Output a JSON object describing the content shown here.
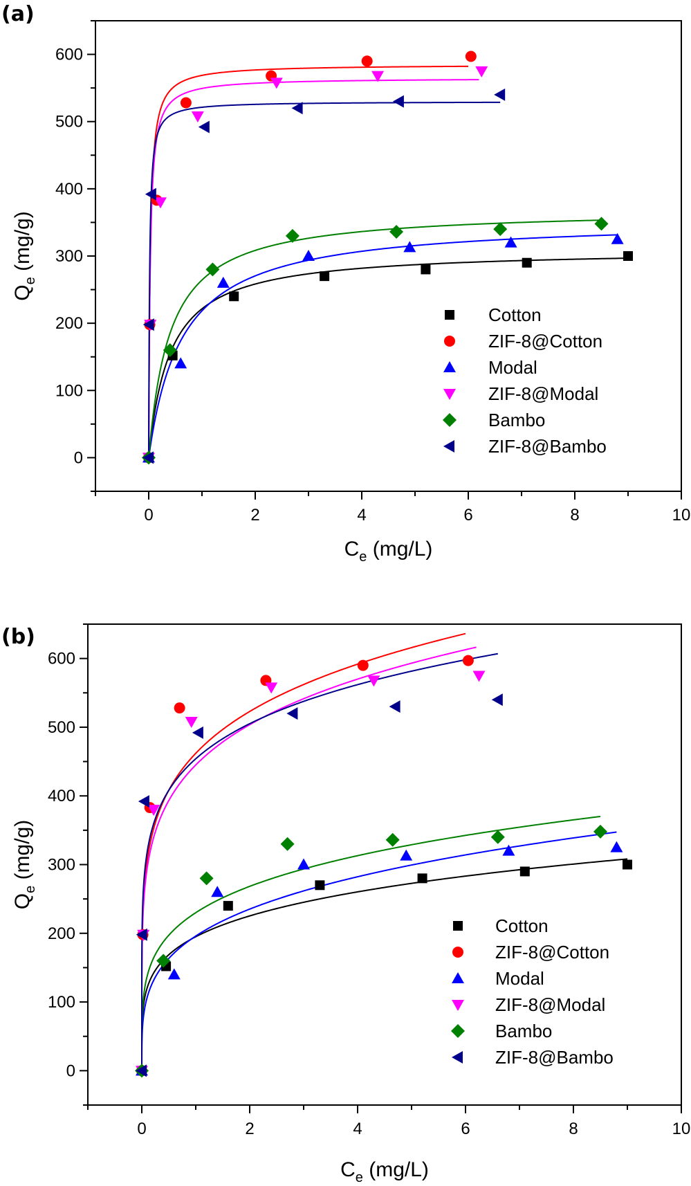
{
  "chart_data": [
    {
      "type": "scatter",
      "panel_label": "(a)",
      "fit_model": "Langmuir",
      "xlabel": "C",
      "xlabel_sub": "e",
      "xlabel_unit": " (mg/L)",
      "ylabel": "Q",
      "ylabel_sub": "e",
      "ylabel_unit": " (mg/g)",
      "xlim": [
        -1,
        10
      ],
      "ylim": [
        -50,
        650
      ],
      "xticks": [
        0,
        2,
        4,
        6,
        8,
        10
      ],
      "yticks": [
        0,
        100,
        200,
        300,
        400,
        500,
        600
      ],
      "legend_position": "bottom-right",
      "series": [
        {
          "name": "Cotton",
          "color": "#000000",
          "marker": "square",
          "x": [
            0,
            0.45,
            1.6,
            3.3,
            5.2,
            7.1,
            9.0
          ],
          "y": [
            0,
            152,
            240,
            270,
            280,
            290,
            300
          ],
          "fit": {
            "qmax": 310,
            "K": 2.5,
            "xmax": 9.0
          }
        },
        {
          "name": "ZIF-8@Cotton",
          "color": "#ff0000",
          "marker": "circle",
          "x": [
            0,
            0.02,
            0.15,
            0.7,
            2.3,
            4.1,
            6.05
          ],
          "y": [
            0,
            198,
            383,
            528,
            568,
            590,
            597
          ],
          "fit": {
            "qmax": 585,
            "K": 35,
            "xmax": 6.0
          }
        },
        {
          "name": "Modal",
          "color": "#0000ff",
          "marker": "triangle-up",
          "x": [
            0,
            0.6,
            1.4,
            3.0,
            4.9,
            6.8,
            8.8
          ],
          "y": [
            0,
            140,
            260,
            300,
            313,
            320,
            325
          ],
          "fit": {
            "qmax": 355,
            "K": 1.6,
            "xmax": 8.8
          }
        },
        {
          "name": "ZIF-8@Modal",
          "color": "#ff00ff",
          "marker": "triangle-down",
          "x": [
            0,
            0.03,
            0.22,
            0.92,
            2.4,
            4.3,
            6.25
          ],
          "y": [
            0,
            198,
            380,
            508,
            558,
            568,
            575
          ],
          "fit": {
            "qmax": 565,
            "K": 35,
            "xmax": 6.2
          }
        },
        {
          "name": "Bambo",
          "color": "#008000",
          "marker": "diamond",
          "x": [
            0,
            0.4,
            1.2,
            2.7,
            4.65,
            6.6,
            8.5
          ],
          "y": [
            0,
            160,
            280,
            330,
            336,
            340,
            348
          ],
          "fit": {
            "qmax": 370,
            "K": 2.5,
            "xmax": 8.5
          }
        },
        {
          "name": "ZIF-8@Bambo",
          "color": "#00008b",
          "marker": "triangle-left",
          "x": [
            0,
            0.01,
            0.05,
            1.05,
            2.8,
            4.7,
            6.6
          ],
          "y": [
            0,
            198,
            392,
            492,
            520,
            530,
            540
          ],
          "fit": {
            "qmax": 530,
            "K": 60,
            "xmax": 6.6
          }
        }
      ]
    },
    {
      "type": "scatter",
      "panel_label": "(b)",
      "fit_model": "Freundlich",
      "xlabel": "C",
      "xlabel_sub": "e",
      "xlabel_unit": " (mg/L)",
      "ylabel": "Q",
      "ylabel_sub": "e",
      "ylabel_unit": " (mg/g)",
      "xlim": [
        -1,
        10
      ],
      "ylim": [
        -50,
        650
      ],
      "xticks": [
        0,
        2,
        4,
        6,
        8,
        10
      ],
      "yticks": [
        0,
        100,
        200,
        300,
        400,
        500,
        600
      ],
      "legend_position": "bottom-right",
      "series": [
        {
          "name": "Cotton",
          "color": "#000000",
          "marker": "square",
          "x": [
            0,
            0.45,
            1.6,
            3.3,
            5.2,
            7.1,
            9.0
          ],
          "y": [
            0,
            152,
            240,
            270,
            280,
            290,
            300
          ],
          "fit": {
            "KF": 195,
            "n": 4.8,
            "xmax": 9.0
          }
        },
        {
          "name": "ZIF-8@Cotton",
          "color": "#ff0000",
          "marker": "circle",
          "x": [
            0,
            0.02,
            0.15,
            0.7,
            2.3,
            4.1,
            6.05
          ],
          "y": [
            0,
            198,
            383,
            528,
            568,
            590,
            597
          ],
          "fit": {
            "KF": 462,
            "n": 5.6,
            "xmax": 6.0
          }
        },
        {
          "name": "Modal",
          "color": "#0000ff",
          "marker": "triangle-up",
          "x": [
            0,
            0.6,
            1.4,
            3.0,
            4.9,
            6.8,
            8.8
          ],
          "y": [
            0,
            140,
            260,
            300,
            313,
            320,
            325
          ],
          "fit": {
            "KF": 196,
            "n": 3.8,
            "xmax": 8.8
          }
        },
        {
          "name": "ZIF-8@Modal",
          "color": "#ff00ff",
          "marker": "triangle-down",
          "x": [
            0,
            0.03,
            0.22,
            0.92,
            2.4,
            4.3,
            6.25
          ],
          "y": [
            0,
            198,
            380,
            508,
            558,
            568,
            575
          ],
          "fit": {
            "KF": 445,
            "n": 5.6,
            "xmax": 6.2
          }
        },
        {
          "name": "Bambo",
          "color": "#008000",
          "marker": "diamond",
          "x": [
            0,
            0.4,
            1.2,
            2.7,
            4.65,
            6.6,
            8.5
          ],
          "y": [
            0,
            160,
            280,
            330,
            336,
            340,
            348
          ],
          "fit": {
            "KF": 230,
            "n": 4.5,
            "xmax": 8.5
          }
        },
        {
          "name": "ZIF-8@Bambo",
          "color": "#00008b",
          "marker": "triangle-left",
          "x": [
            0,
            0.01,
            0.05,
            1.05,
            2.8,
            4.7,
            6.6
          ],
          "y": [
            0,
            198,
            392,
            492,
            520,
            530,
            540
          ],
          "fit": {
            "KF": 454,
            "n": 6.5,
            "xmax": 6.6
          }
        }
      ]
    }
  ]
}
